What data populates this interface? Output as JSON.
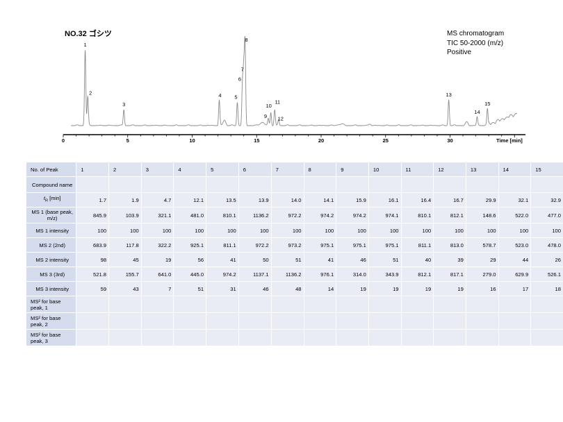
{
  "page": {
    "title": "NO.32 ゴシツ",
    "info": [
      "MS chromatogram",
      "TIC 50-2000 (m/z)",
      "Positive"
    ]
  },
  "chart_data": {
    "type": "line",
    "xlabel": "Time [min]",
    "xlim": [
      0,
      36
    ],
    "x_ticks": [
      0,
      5,
      10,
      15,
      20,
      25,
      30
    ],
    "ylim": [
      0,
      100
    ],
    "peaks": [
      {
        "label": "1",
        "t": 1.7,
        "h": 94
      },
      {
        "label": "2",
        "t": 1.9,
        "h": 37
      },
      {
        "label": "3",
        "t": 4.7,
        "h": 21
      },
      {
        "label": "4",
        "t": 12.1,
        "h": 32
      },
      {
        "label": "5",
        "t": 13.5,
        "h": 30
      },
      {
        "label": "6",
        "t": 13.9,
        "h": 52
      },
      {
        "label": "7",
        "t": 14.0,
        "h": 64
      },
      {
        "label": "8",
        "t": 14.1,
        "h": 100
      },
      {
        "label": "9",
        "t": 15.9,
        "h": 10
      },
      {
        "label": "10",
        "t": 16.1,
        "h": 18
      },
      {
        "label": "11",
        "t": 16.4,
        "h": 20
      },
      {
        "label": "12",
        "t": 16.7,
        "h": 9
      },
      {
        "label": "13",
        "t": 29.9,
        "h": 33
      },
      {
        "label": "14",
        "t": 32.1,
        "h": 12
      },
      {
        "label": "15",
        "t": 32.9,
        "h": 22
      }
    ]
  },
  "table": {
    "header_label": "No. of Peak",
    "peak_numbers": [
      "1",
      "2",
      "3",
      "4",
      "5",
      "6",
      "7",
      "8",
      "9",
      "10",
      "11",
      "12",
      "13",
      "14",
      "15"
    ],
    "rows": [
      {
        "label": "Compound name",
        "align": "center",
        "values": [
          "",
          "",
          "",
          "",
          "",
          "",
          "",
          "",
          "",
          "",
          "",
          "",
          "",
          "",
          ""
        ]
      },
      {
        "label_sym": "t",
        "label_sub": "R",
        "label_rest": " [min]",
        "align": "center",
        "values": [
          "1.7",
          "1.9",
          "4.7",
          "12.1",
          "13.5",
          "13.9",
          "14.0",
          "14.1",
          "15.9",
          "16.1",
          "16.4",
          "16.7",
          "29.9",
          "32.1",
          "32.9"
        ]
      },
      {
        "label": "MS 1 (base peak, m/z)",
        "align": "center",
        "values": [
          "845.9",
          "103.9",
          "321.1",
          "481.0",
          "810.1",
          "1136.2",
          "972.2",
          "974.2",
          "974.2",
          "974.1",
          "810.1",
          "812.1",
          "148.6",
          "522.0",
          "477.0"
        ]
      },
      {
        "label": "MS 1 intensity",
        "align": "center",
        "values": [
          "100",
          "100",
          "100",
          "100",
          "100",
          "100",
          "100",
          "100",
          "100",
          "100",
          "100",
          "100",
          "100",
          "100",
          "100"
        ]
      },
      {
        "label": "MS 2 (2nd)",
        "align": "center",
        "values": [
          "683.9",
          "117.8",
          "322.2",
          "925.1",
          "811.1",
          "972.2",
          "973.2",
          "975.1",
          "975.1",
          "975.1",
          "811.1",
          "813.0",
          "578.7",
          "523.0",
          "478.0"
        ]
      },
      {
        "label": "MS 2 intensity",
        "align": "center",
        "values": [
          "98",
          "45",
          "19",
          "56",
          "41",
          "50",
          "51",
          "41",
          "46",
          "51",
          "40",
          "39",
          "29",
          "44",
          "26"
        ]
      },
      {
        "label": "MS 3 (3rd)",
        "align": "center",
        "values": [
          "521.8",
          "155.7",
          "641.0",
          "445.0",
          "974.2",
          "1137.1",
          "1136.2",
          "976.1",
          "314.0",
          "343.9",
          "812.1",
          "817.1",
          "279.0",
          "629.9",
          "526.1"
        ]
      },
      {
        "label": "MS 3 intensity",
        "align": "center",
        "values": [
          "59",
          "43",
          "7",
          "51",
          "31",
          "46",
          "48",
          "14",
          "19",
          "19",
          "19",
          "19",
          "16",
          "17",
          "18"
        ]
      },
      {
        "label": "MS² for base peak, 1",
        "align": "left",
        "values": [
          "",
          "",
          "",
          "",
          "",
          "",
          "",
          "",
          "",
          "",
          "",
          "",
          "",
          "",
          ""
        ]
      },
      {
        "label": "MS² for base peak, 2",
        "align": "left",
        "values": [
          "",
          "",
          "",
          "",
          "",
          "",
          "",
          "",
          "",
          "",
          "",
          "",
          "",
          "",
          ""
        ]
      },
      {
        "label": "MS² for base peak, 3",
        "align": "left",
        "values": [
          "",
          "",
          "",
          "",
          "",
          "",
          "",
          "",
          "",
          "",
          "",
          "",
          "",
          "",
          ""
        ]
      }
    ]
  }
}
